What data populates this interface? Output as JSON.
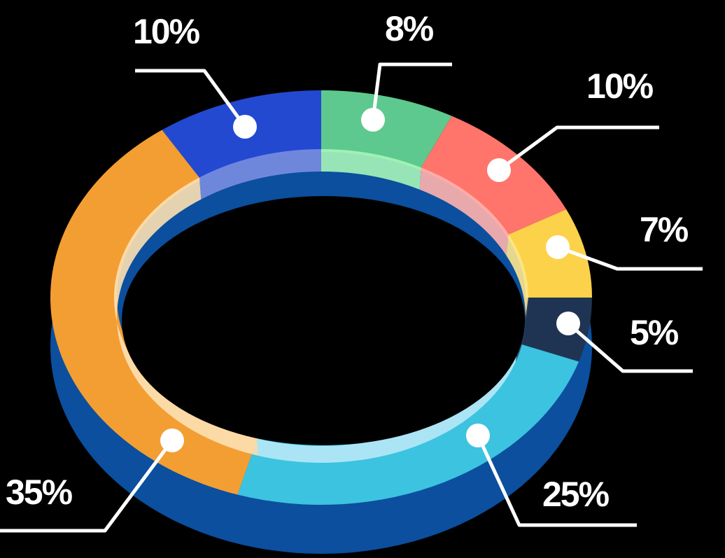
{
  "chart_data": {
    "type": "pie",
    "title": "",
    "start_angle_deg": -90,
    "slices": [
      {
        "value": 8,
        "label": "8%",
        "color": "#5ec98e",
        "lip": "#a6f5b8"
      },
      {
        "value": 10,
        "label": "10%",
        "color": "#ff756b",
        "lip": "#ffb3ad"
      },
      {
        "value": 7,
        "label": "7%",
        "color": "#fcd24a",
        "lip": "#fde58c"
      },
      {
        "value": 5,
        "label": "5%",
        "color": "#1f3452",
        "lip": "#2c4a70"
      },
      {
        "value": 25,
        "label": "25%",
        "color": "#3cc3e0",
        "lip": "#b7e9f7"
      },
      {
        "value": 35,
        "label": "35%",
        "color": "#f39e33",
        "lip": "#fde0b3"
      },
      {
        "value": 10,
        "label": "10%",
        "color": "#2349d1",
        "lip": "#7a8de0"
      }
    ],
    "base_color": "#0b4f9e",
    "legend": "none"
  }
}
